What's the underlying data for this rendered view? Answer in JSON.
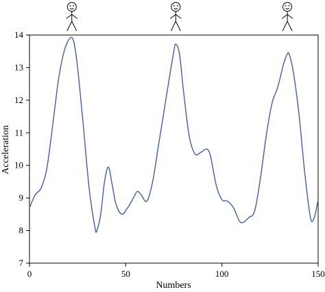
{
  "chart_data": {
    "type": "line",
    "title": "",
    "xlabel": "Numbers",
    "ylabel": "Acceleration",
    "xlim": [
      0,
      150
    ],
    "ylim": [
      7,
      14
    ],
    "x_ticks": [
      0,
      50,
      100,
      150
    ],
    "y_ticks": [
      7,
      8,
      9,
      10,
      11,
      12,
      13,
      14
    ],
    "grid": false,
    "series": [
      {
        "color": "#3f5fa8",
        "x": [
          0,
          3,
          6,
          9,
          12,
          15,
          18,
          21,
          23,
          25,
          28,
          31,
          34,
          35,
          37,
          39,
          41,
          43,
          45,
          48,
          51,
          54,
          56,
          58,
          61,
          64,
          67,
          70,
          73,
          75,
          76,
          78,
          80,
          83,
          86,
          89,
          92,
          94,
          97,
          100,
          103,
          106,
          109,
          111,
          114,
          117,
          120,
          123,
          126,
          129,
          132,
          134,
          135,
          137,
          140,
          143,
          146,
          148,
          150
        ],
        "y": [
          8.7,
          9.1,
          9.3,
          9.9,
          11.2,
          12.6,
          13.5,
          13.9,
          13.8,
          13.0,
          11.2,
          9.3,
          8.1,
          8.0,
          8.5,
          9.5,
          9.95,
          9.4,
          8.8,
          8.5,
          8.7,
          9.0,
          9.2,
          9.1,
          8.9,
          9.5,
          10.6,
          11.7,
          12.8,
          13.5,
          13.72,
          13.4,
          12.3,
          10.9,
          10.35,
          10.4,
          10.5,
          10.3,
          9.4,
          8.95,
          8.9,
          8.7,
          8.3,
          8.25,
          8.4,
          8.6,
          9.6,
          10.9,
          11.9,
          12.4,
          13.1,
          13.42,
          13.4,
          12.9,
          11.6,
          9.8,
          8.4,
          8.4,
          8.95
        ]
      }
    ],
    "annotations": [
      {
        "type": "stick-figure-icon",
        "x": 22
      },
      {
        "type": "stick-figure-icon",
        "x": 76
      },
      {
        "type": "stick-figure-icon",
        "x": 134
      }
    ]
  }
}
